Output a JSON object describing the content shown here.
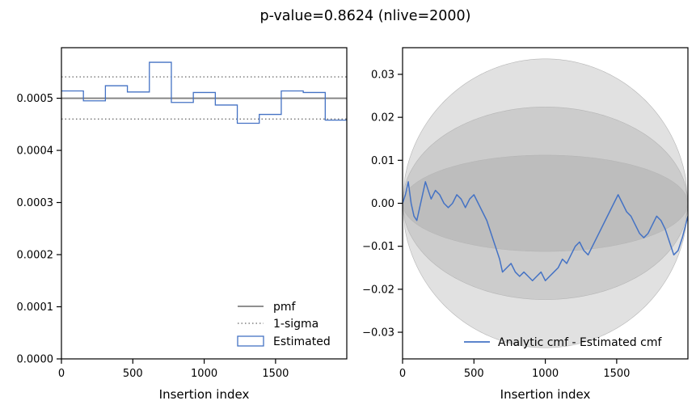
{
  "figure": {
    "title": "p-value=0.8624 (nlive=2000)"
  },
  "chart_data": [
    {
      "type": "step",
      "xlabel": "Insertion index",
      "ylabel": "",
      "xlim": [
        0,
        1999
      ],
      "ylim": [
        0,
        0.000597
      ],
      "xticks": [
        0,
        500,
        1000,
        1500
      ],
      "xtick_labels": [
        "0",
        "500",
        "1000",
        "1500"
      ],
      "yticks": [
        0,
        0.0001,
        0.0002,
        0.0003,
        0.0004,
        0.0005
      ],
      "ytick_labels": [
        "0.0000",
        "0.0001",
        "0.0002",
        "0.0003",
        "0.0004",
        "0.0005"
      ],
      "pmf": 0.0005,
      "sigma_upper": 0.000541,
      "sigma_lower": 0.00046,
      "bin_edges": [
        0,
        154,
        308,
        462,
        616,
        770,
        924,
        1078,
        1232,
        1386,
        1540,
        1694,
        1848,
        1999
      ],
      "estimated": [
        0.000514,
        0.000495,
        0.000524,
        0.000512,
        0.000569,
        0.000492,
        0.000511,
        0.000487,
        0.000452,
        0.000469,
        0.000514,
        0.000511,
        0.000458
      ],
      "legend_position": "lower-right",
      "legend": [
        {
          "label": "pmf",
          "color": "#808080",
          "style": "solid"
        },
        {
          "label": "1-sigma",
          "color": "#808080",
          "style": "dotted"
        },
        {
          "label": "Estimated",
          "color": "#4472c4",
          "style": "box"
        }
      ]
    },
    {
      "type": "line",
      "xlabel": "Insertion index",
      "ylabel": "",
      "xlim": [
        0,
        1999
      ],
      "ylim": [
        -0.0362,
        0.0362
      ],
      "xticks": [
        0,
        500,
        1000,
        1500
      ],
      "xtick_labels": [
        "0",
        "500",
        "1000",
        "1500"
      ],
      "yticks": [
        -0.03,
        -0.02,
        -0.01,
        0.0,
        0.01,
        0.02,
        0.03
      ],
      "ytick_labels": [
        "−0.03",
        "−0.02",
        "−0.01",
        "0.00",
        "0.01",
        "0.02",
        "0.03"
      ],
      "bands_sigma_widths": [
        0.0112,
        0.0224,
        0.0336
      ],
      "band_colors": [
        "#bdbdbd",
        "#cccccc",
        "#e1e1e1"
      ],
      "series": [
        {
          "name": "Analytic cmf - Estimated cmf",
          "color": "#4472c4",
          "x": [
            0,
            20,
            40,
            60,
            80,
            100,
            120,
            140,
            160,
            180,
            200,
            230,
            260,
            290,
            320,
            350,
            380,
            410,
            440,
            470,
            500,
            530,
            560,
            590,
            620,
            650,
            680,
            700,
            730,
            760,
            790,
            820,
            850,
            880,
            910,
            940,
            970,
            1000,
            1030,
            1060,
            1090,
            1120,
            1150,
            1180,
            1210,
            1240,
            1270,
            1300,
            1330,
            1360,
            1390,
            1420,
            1450,
            1480,
            1510,
            1540,
            1570,
            1600,
            1630,
            1660,
            1690,
            1720,
            1750,
            1780,
            1810,
            1840,
            1870,
            1900,
            1930,
            1960,
            1999
          ],
          "y": [
            0.0,
            0.002,
            0.005,
            0.0,
            -0.003,
            -0.004,
            -0.001,
            0.002,
            0.005,
            0.003,
            0.001,
            0.003,
            0.002,
            0.0,
            -0.001,
            0.0,
            0.002,
            0.001,
            -0.001,
            0.001,
            0.002,
            0.0,
            -0.002,
            -0.004,
            -0.007,
            -0.01,
            -0.013,
            -0.016,
            -0.015,
            -0.014,
            -0.016,
            -0.017,
            -0.016,
            -0.017,
            -0.018,
            -0.017,
            -0.016,
            -0.018,
            -0.017,
            -0.016,
            -0.015,
            -0.013,
            -0.014,
            -0.012,
            -0.01,
            -0.009,
            -0.011,
            -0.012,
            -0.01,
            -0.008,
            -0.006,
            -0.004,
            -0.002,
            0.0,
            0.002,
            0.0,
            -0.002,
            -0.003,
            -0.005,
            -0.007,
            -0.008,
            -0.007,
            -0.005,
            -0.003,
            -0.004,
            -0.006,
            -0.009,
            -0.012,
            -0.011,
            -0.008,
            -0.003
          ]
        }
      ],
      "legend_position": "lower-right"
    }
  ]
}
